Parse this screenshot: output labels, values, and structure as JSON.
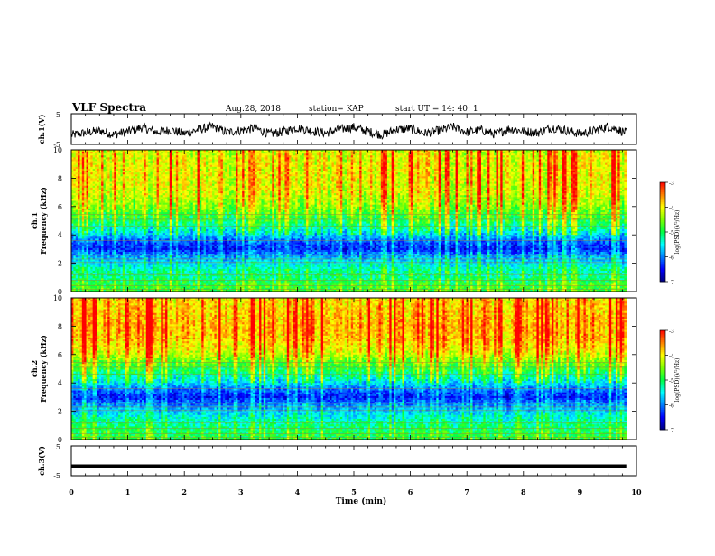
{
  "header": {
    "title": "VLF Spectra",
    "date": "Aug.28, 2018",
    "station": "station= KAP",
    "start": "start  UT  =   14: 40: 1"
  },
  "colors": {
    "background": "#ffffff",
    "axis": "#000000",
    "colormap": [
      "#000080",
      "#0000ff",
      "#0080ff",
      "#00ffff",
      "#00ff40",
      "#80ff00",
      "#ffff00",
      "#ff8000",
      "#ff0000",
      "#ffffff"
    ]
  },
  "chart_data": [
    {
      "type": "line",
      "id": "ch1-waveform",
      "ylabel": "ch.1(V)",
      "yticks": [
        "5",
        "-5"
      ],
      "ylim": [
        -5,
        5
      ],
      "xlim": [
        0,
        10
      ],
      "data_extent_min": 9.82,
      "note_series": "noisy waveform, roughly -2.5 to 2 V",
      "x": [
        0,
        0.25,
        0.5,
        0.75,
        1,
        1.25,
        1.5,
        1.75,
        2,
        2.25,
        2.5,
        2.75,
        3,
        3.25,
        3.5,
        3.75,
        4,
        4.25,
        4.5,
        4.75,
        5,
        5.25,
        5.5,
        5.75,
        6,
        6.25,
        6.5,
        6.75,
        7,
        7.25,
        7.5,
        7.75,
        8,
        8.25,
        8.5,
        8.75,
        9,
        9.25,
        9.5,
        9.8
      ],
      "y": [
        -2.0,
        -1.2,
        -0.5,
        -1.8,
        -0.8,
        0.5,
        -1.0,
        -0.3,
        -1.5,
        -0.2,
        0.8,
        -1.1,
        -0.4,
        0.3,
        -1.6,
        -0.9,
        0.4,
        -0.6,
        -1.3,
        -0.1,
        0.6,
        -0.8,
        -1.9,
        -0.2,
        0.2,
        -1.4,
        -0.5,
        0.7,
        -1.0,
        -0.3,
        -1.7,
        0.1,
        -0.7,
        -1.2,
        0.5,
        -0.4,
        -1.5,
        -0.6,
        0.9,
        -1.1
      ]
    },
    {
      "type": "heatmap",
      "id": "ch1-spectrogram",
      "ylabel": "ch.1\nFrequency (kHz)",
      "yticks": [
        "0",
        "2",
        "4",
        "6",
        "8",
        "10"
      ],
      "ylim": [
        0,
        10
      ],
      "xlim": [
        0,
        10
      ],
      "data_extent_min": 9.82,
      "colorbar": {
        "label": "log(PSD)(V²/Hz)",
        "ticks": [
          "-3",
          "-4",
          "-5",
          "-6",
          "-7"
        ],
        "range": [
          -7,
          -3
        ]
      },
      "freq_profile_khz": [
        0,
        0.5,
        1,
        1.5,
        2,
        2.5,
        3,
        3.5,
        4,
        4.5,
        5,
        5.5,
        6,
        7,
        8,
        9,
        10
      ],
      "freq_profile_logpsd": [
        -4.8,
        -4.9,
        -5.2,
        -5.3,
        -5.6,
        -5.9,
        -6.4,
        -6.2,
        -5.7,
        -5.3,
        -5.0,
        -4.8,
        -4.5,
        -4.2,
        -4.1,
        -4.1,
        -4.2
      ],
      "time_variation": "vertical impulsive streaks (sferics) across all times"
    },
    {
      "type": "heatmap",
      "id": "ch2-spectrogram",
      "ylabel": "ch.2\nFrequency (kHz)",
      "yticks": [
        "0",
        "2",
        "4",
        "6",
        "8",
        "10"
      ],
      "ylim": [
        0,
        10
      ],
      "xlim": [
        0,
        10
      ],
      "data_extent_min": 9.82,
      "colorbar": {
        "label": "log(PSD)(V²/Hz)",
        "ticks": [
          "-3",
          "-4",
          "-5",
          "-6",
          "-7"
        ],
        "range": [
          -7,
          -3
        ]
      },
      "freq_profile_khz": [
        0,
        0.5,
        1,
        1.5,
        2,
        2.5,
        3,
        3.5,
        4,
        4.5,
        5,
        5.5,
        6,
        7,
        8,
        9,
        10
      ],
      "freq_profile_logpsd": [
        -4.9,
        -5.0,
        -5.2,
        -5.4,
        -5.7,
        -6.0,
        -6.4,
        -6.1,
        -5.6,
        -5.2,
        -4.9,
        -4.6,
        -4.2,
        -3.8,
        -3.7,
        -3.8,
        -3.9
      ],
      "time_variation": "vertical impulsive streaks (sferics) across all times"
    },
    {
      "type": "line",
      "id": "ch3-waveform",
      "ylabel": "ch.3(V)",
      "yticks": [
        "5",
        "-5"
      ],
      "ylim": [
        -5,
        5
      ],
      "xlim": [
        0,
        10
      ],
      "data_extent_min": 9.82,
      "x": [
        0,
        9.82
      ],
      "y": [
        -1.8,
        -1.8
      ]
    }
  ],
  "xaxis": {
    "label": "Time  (min)",
    "ticks": [
      "0",
      "1",
      "2",
      "3",
      "4",
      "5",
      "6",
      "7",
      "8",
      "9",
      "10"
    ]
  }
}
